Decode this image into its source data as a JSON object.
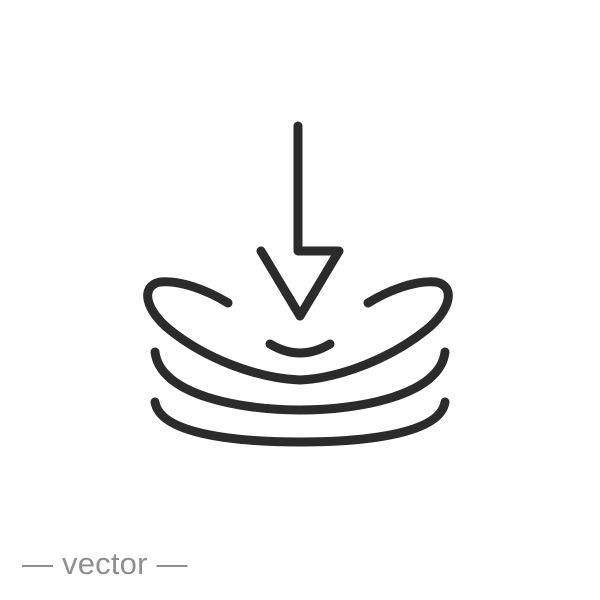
{
  "icon": {
    "name": "press-down-cushion-icon",
    "stroke_color": "#2b2b2b"
  },
  "caption": {
    "text": "— vector —",
    "color": "#8f8f8f"
  }
}
